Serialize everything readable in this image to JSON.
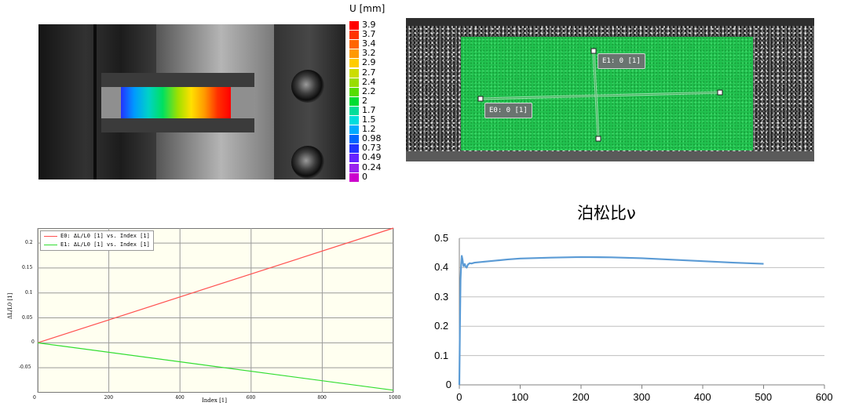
{
  "colorbar": {
    "title": "U [mm]",
    "stops": [
      {
        "label": "3.9",
        "color": "#ff0000"
      },
      {
        "label": "3.7",
        "color": "#ff3300"
      },
      {
        "label": "3.4",
        "color": "#ff6600"
      },
      {
        "label": "3.2",
        "color": "#ff9900"
      },
      {
        "label": "2.9",
        "color": "#ffcc00"
      },
      {
        "label": "2.7",
        "color": "#ccdd00"
      },
      {
        "label": "2.4",
        "color": "#99dd00"
      },
      {
        "label": "2.2",
        "color": "#55dd00"
      },
      {
        "label": "2",
        "color": "#00dd33"
      },
      {
        "label": "1.7",
        "color": "#00dd99"
      },
      {
        "label": "1.5",
        "color": "#00dddd"
      },
      {
        "label": "1.2",
        "color": "#00aaff"
      },
      {
        "label": "0.98",
        "color": "#0066ff"
      },
      {
        "label": "0.73",
        "color": "#2233ff"
      },
      {
        "label": "0.49",
        "color": "#6622ff"
      },
      {
        "label": "0.24",
        "color": "#9922ee"
      },
      {
        "label": "0",
        "color": "#cc00cc"
      }
    ]
  },
  "extensometers": [
    {
      "label": "E0: 0 [1]"
    },
    {
      "label": "E1: 0 [1]"
    }
  ],
  "chart_data": [
    {
      "type": "line",
      "title": "",
      "xlabel": "Index [1]",
      "ylabel": "ΔL/L0 [1]",
      "xlim": [
        0,
        1000
      ],
      "ylim": [
        -0.1,
        0.23
      ],
      "xticks": [
        "0",
        "200",
        "400",
        "600",
        "800",
        "1000"
      ],
      "yticks": [
        "0.2",
        "0.15",
        "0.1",
        "0.05",
        "0",
        "-0.05"
      ],
      "grid": true,
      "legend_position": "top-left",
      "series": [
        {
          "name": "E0: ΔL/L0 [1] vs. Index [1]",
          "color": "#ff5050",
          "x": [
            0,
            1000
          ],
          "y": [
            0,
            0.23
          ]
        },
        {
          "name": "E1: ΔL/L0 [1] vs. Index [1]",
          "color": "#33dd33",
          "x": [
            0,
            1000
          ],
          "y": [
            0,
            -0.095
          ]
        }
      ]
    },
    {
      "type": "line",
      "title": "泊松比ν",
      "xlabel": "",
      "ylabel": "",
      "xlim": [
        0,
        600
      ],
      "ylim": [
        0,
        0.5
      ],
      "xticks": [
        "0",
        "100",
        "200",
        "300",
        "400",
        "500",
        "600"
      ],
      "yticks": [
        "0.5",
        "0.4",
        "0.3",
        "0.2",
        "0.1",
        "0"
      ],
      "grid": true,
      "series": [
        {
          "color": "#5b9bd5",
          "x": [
            0,
            1,
            2,
            3,
            4,
            5,
            6,
            7,
            8,
            9,
            10,
            12,
            14,
            17,
            20,
            25,
            30,
            40,
            60,
            80,
            100,
            150,
            200,
            250,
            300,
            350,
            400,
            450,
            500
          ],
          "y": [
            0,
            0.2,
            0.36,
            0.41,
            0.44,
            0.43,
            0.415,
            0.405,
            0.41,
            0.412,
            0.405,
            0.4,
            0.41,
            0.415,
            0.414,
            0.417,
            0.418,
            0.42,
            0.424,
            0.428,
            0.431,
            0.434,
            0.436,
            0.435,
            0.432,
            0.427,
            0.422,
            0.417,
            0.413
          ]
        }
      ]
    }
  ]
}
